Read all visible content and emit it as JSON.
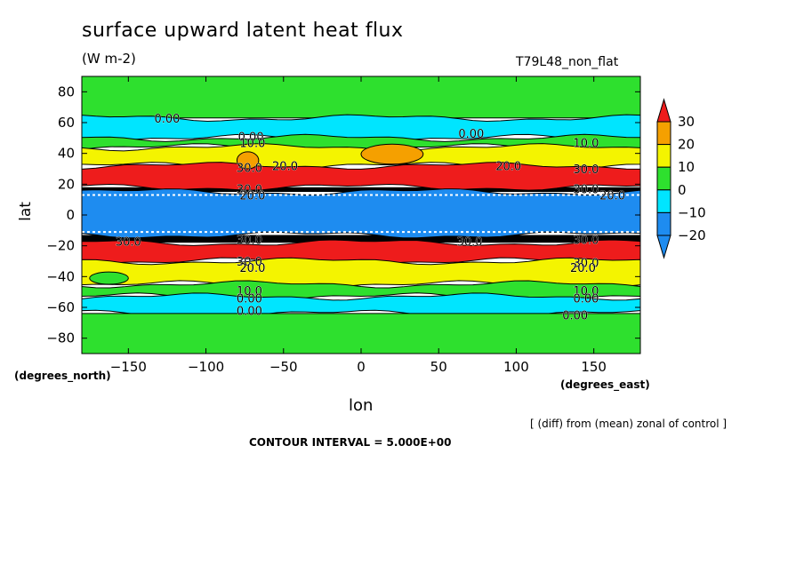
{
  "chart_data": {
    "type": "contour",
    "title": "surface upward latent heat flux",
    "units": "(W m-2)",
    "run_label": "T79L48_non_flat",
    "xlabel": "lon",
    "ylabel": "lat",
    "x_units": "(degrees_east)",
    "y_units": "(degrees_north)",
    "xlim": [
      -180,
      180
    ],
    "ylim": [
      -90,
      90
    ],
    "x_ticks": [
      -150,
      -100,
      -50,
      0,
      50,
      100,
      150
    ],
    "y_ticks": [
      80,
      60,
      40,
      20,
      0,
      -20,
      -40,
      -60,
      -80
    ],
    "x_tick_labels": [
      "−150",
      "−100",
      "−50",
      "0",
      "50",
      "100",
      "150"
    ],
    "y_tick_labels": [
      "80",
      "60",
      "40",
      "20",
      "0",
      "−20",
      "−40",
      "−60",
      "−80"
    ],
    "note": "[ (diff) from (mean) zonal of control ]",
    "contour_interval": "CONTOUR INTERVAL = 5.000E+00",
    "colorbar": {
      "levels": [
        30,
        20,
        10,
        0,
        -10,
        -20
      ],
      "level_labels": [
        "30",
        "20",
        "10",
        "0",
        "−10",
        "−20"
      ],
      "colors": [
        "#ee1c1c",
        "#f5a000",
        "#f4f400",
        "#2ee02e",
        "#00e5ff",
        "#1e8cf0"
      ],
      "over_color": "#ee1c1c",
      "under_color": "#1e8cf0"
    },
    "bands": [
      {
        "lat_from": 90,
        "lat_to": 63,
        "value_range": "0 to 10",
        "color": "#2ee02e"
      },
      {
        "lat_from": 63,
        "lat_to": 50,
        "value_range": "-10 to 0",
        "color": "#00e5ff"
      },
      {
        "lat_from": 50,
        "lat_to": 44,
        "value_range": "0 to 10",
        "color": "#2ee02e"
      },
      {
        "lat_from": 44,
        "lat_to": 32,
        "value_range": "10 to 20",
        "color": "#f4f400"
      },
      {
        "lat_from": 32,
        "lat_to": 18,
        "value_range": "above 30",
        "color": "#ee1c1c"
      },
      {
        "lat_from": 15,
        "lat_to": -13,
        "value_range": "below -20",
        "color": "#1e8cf0"
      },
      {
        "lat_from": -18,
        "lat_to": -30,
        "value_range": "above 30",
        "color": "#ee1c1c"
      },
      {
        "lat_from": -30,
        "lat_to": -45,
        "value_range": "10 to 20",
        "color": "#f4f400"
      },
      {
        "lat_from": -45,
        "lat_to": -53,
        "value_range": "0 to 10",
        "color": "#2ee02e"
      },
      {
        "lat_from": -53,
        "lat_to": -64,
        "value_range": "-10 to 0",
        "color": "#00e5ff"
      },
      {
        "lat_from": -64,
        "lat_to": -90,
        "value_range": "0 to 10",
        "color": "#2ee02e"
      }
    ],
    "patches": [
      {
        "lon_from": 0,
        "lon_to": 40,
        "lat_from": 46,
        "lat_to": 33,
        "value_range": "20 to 30",
        "color": "#f5a000"
      },
      {
        "lon_from": -80,
        "lon_to": -66,
        "lat_from": 41,
        "lat_to": 30,
        "value_range": "20 to 30",
        "color": "#f5a000"
      },
      {
        "lon_from": -175,
        "lon_to": -150,
        "lat_from": -37,
        "lat_to": -45,
        "value_range": "0 to 10",
        "color": "#2ee02e"
      }
    ],
    "contour_labels": [
      {
        "text": "0.00",
        "lon": -125,
        "lat": 63
      },
      {
        "text": "0.00",
        "lon": 71,
        "lat": 53
      },
      {
        "text": "0.00",
        "lon": -71,
        "lat": 51
      },
      {
        "text": "10.0",
        "lon": -70,
        "lat": 47
      },
      {
        "text": "10.0",
        "lon": 145,
        "lat": 47
      },
      {
        "text": "30.0",
        "lon": -72,
        "lat": 31
      },
      {
        "text": "20.0",
        "lon": -49,
        "lat": 32
      },
      {
        "text": "20.0",
        "lon": 95,
        "lat": 32
      },
      {
        "text": "30.0",
        "lon": 145,
        "lat": 30
      },
      {
        "text": "30.0",
        "lon": -72,
        "lat": 17
      },
      {
        "text": "20.0",
        "lon": -70,
        "lat": 13
      },
      {
        "text": "30.0",
        "lon": 145,
        "lat": 17
      },
      {
        "text": "20.0",
        "lon": 162,
        "lat": 13
      },
      {
        "text": "30.0",
        "lon": -150,
        "lat": -17
      },
      {
        "text": "30.0",
        "lon": -72,
        "lat": -16
      },
      {
        "text": "30.0",
        "lon": 70,
        "lat": -17
      },
      {
        "text": "30.0",
        "lon": 145,
        "lat": -16
      },
      {
        "text": "30.0",
        "lon": -72,
        "lat": -30
      },
      {
        "text": "20.0",
        "lon": -70,
        "lat": -34
      },
      {
        "text": "30.0",
        "lon": 145,
        "lat": -31
      },
      {
        "text": "20.0",
        "lon": 143,
        "lat": -34
      },
      {
        "text": "10.0",
        "lon": -72,
        "lat": -49
      },
      {
        "text": "10.0",
        "lon": 145,
        "lat": -49
      },
      {
        "text": "0.00",
        "lon": -72,
        "lat": -54
      },
      {
        "text": "0.00",
        "lon": 145,
        "lat": -54
      },
      {
        "text": "0.00",
        "lon": -72,
        "lat": -62
      },
      {
        "text": "0.00",
        "lon": 138,
        "lat": -65
      }
    ]
  }
}
